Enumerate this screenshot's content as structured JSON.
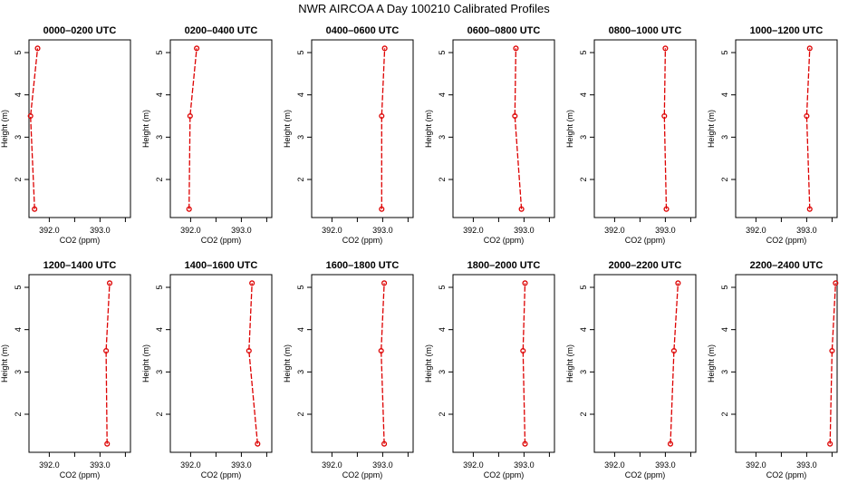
{
  "figure": {
    "title": "NWR AIRCOA A  Day 100210  Calibrated Profiles"
  },
  "style": {
    "line_color": "#dd0000",
    "point_color": "#dd0000",
    "axis_color": "#000000"
  },
  "chart_data": [
    {
      "type": "line",
      "title": "0000–0200 UTC",
      "xlabel": "CO2 (ppm)",
      "ylabel": "Height (m)",
      "xlim": [
        391.6,
        393.6
      ],
      "ylim": [
        1.1,
        5.3
      ],
      "xticks": [
        "392.0",
        "393.0"
      ],
      "yticks": [
        "2",
        "3",
        "4",
        "5"
      ],
      "series": [
        {
          "x": [
            391.71,
            391.63,
            391.77
          ],
          "y": [
            1.3,
            3.5,
            5.1
          ]
        }
      ]
    },
    {
      "type": "line",
      "title": "0200–0400 UTC",
      "xlabel": "CO2 (ppm)",
      "ylabel": "Height (m)",
      "xlim": [
        391.6,
        393.6
      ],
      "ylim": [
        1.1,
        5.3
      ],
      "xticks": [
        "392.0",
        "393.0"
      ],
      "yticks": [
        "2",
        "3",
        "4",
        "5"
      ],
      "series": [
        {
          "x": [
            391.97,
            391.99,
            392.12
          ],
          "y": [
            1.3,
            3.5,
            5.1
          ]
        }
      ]
    },
    {
      "type": "line",
      "title": "0400–0600 UTC",
      "xlabel": "CO2 (ppm)",
      "ylabel": "Height (m)",
      "xlim": [
        391.6,
        393.6
      ],
      "ylim": [
        1.1,
        5.3
      ],
      "xticks": [
        "392.0",
        "393.0"
      ],
      "yticks": [
        "2",
        "3",
        "4",
        "5"
      ],
      "series": [
        {
          "x": [
            392.98,
            392.98,
            393.04
          ],
          "y": [
            1.3,
            3.5,
            5.1
          ]
        }
      ]
    },
    {
      "type": "line",
      "title": "0600–0800 UTC",
      "xlabel": "CO2 (ppm)",
      "ylabel": "Height (m)",
      "xlim": [
        391.6,
        393.6
      ],
      "ylim": [
        1.1,
        5.3
      ],
      "xticks": [
        "392.0",
        "393.0"
      ],
      "yticks": [
        "2",
        "3",
        "4",
        "5"
      ],
      "series": [
        {
          "x": [
            392.95,
            392.82,
            392.84
          ],
          "y": [
            1.3,
            3.5,
            5.1
          ]
        }
      ]
    },
    {
      "type": "line",
      "title": "0800–1000 UTC",
      "xlabel": "CO2 (ppm)",
      "ylabel": "Height (m)",
      "xlim": [
        391.6,
        393.6
      ],
      "ylim": [
        1.1,
        5.3
      ],
      "xticks": [
        "392.0",
        "393.0"
      ],
      "yticks": [
        "2",
        "3",
        "4",
        "5"
      ],
      "series": [
        {
          "x": [
            393.02,
            392.98,
            393.0
          ],
          "y": [
            1.3,
            3.5,
            5.1
          ]
        }
      ]
    },
    {
      "type": "line",
      "title": "1000–1200 UTC",
      "xlabel": "CO2 (ppm)",
      "ylabel": "Height (m)",
      "xlim": [
        391.6,
        393.6
      ],
      "ylim": [
        1.1,
        5.3
      ],
      "xticks": [
        "392.0",
        "393.0"
      ],
      "yticks": [
        "2",
        "3",
        "4",
        "5"
      ],
      "series": [
        {
          "x": [
            393.06,
            393.0,
            393.06
          ],
          "y": [
            1.3,
            3.5,
            5.1
          ]
        }
      ]
    },
    {
      "type": "line",
      "title": "1200–1400 UTC",
      "xlabel": "CO2 (ppm)",
      "ylabel": "Height (m)",
      "xlim": [
        391.6,
        393.6
      ],
      "ylim": [
        1.1,
        5.3
      ],
      "xticks": [
        "392.0",
        "393.0"
      ],
      "yticks": [
        "2",
        "3",
        "4",
        "5"
      ],
      "series": [
        {
          "x": [
            393.14,
            393.12,
            393.19
          ],
          "y": [
            1.3,
            3.5,
            5.1
          ]
        }
      ]
    },
    {
      "type": "line",
      "title": "1400–1600 UTC",
      "xlabel": "CO2 (ppm)",
      "ylabel": "Height (m)",
      "xlim": [
        391.6,
        393.6
      ],
      "ylim": [
        1.1,
        5.3
      ],
      "xticks": [
        "392.0",
        "393.0"
      ],
      "yticks": [
        "2",
        "3",
        "4",
        "5"
      ],
      "series": [
        {
          "x": [
            393.32,
            393.15,
            393.21
          ],
          "y": [
            1.3,
            3.5,
            5.1
          ]
        }
      ]
    },
    {
      "type": "line",
      "title": "1600–1800 UTC",
      "xlabel": "CO2 (ppm)",
      "ylabel": "Height (m)",
      "xlim": [
        391.6,
        393.6
      ],
      "ylim": [
        1.1,
        5.3
      ],
      "xticks": [
        "392.0",
        "393.0"
      ],
      "yticks": [
        "2",
        "3",
        "4",
        "5"
      ],
      "series": [
        {
          "x": [
            393.03,
            392.97,
            393.03
          ],
          "y": [
            1.3,
            3.5,
            5.1
          ]
        }
      ]
    },
    {
      "type": "line",
      "title": "1800–2000 UTC",
      "xlabel": "CO2 (ppm)",
      "ylabel": "Height (m)",
      "xlim": [
        391.6,
        393.6
      ],
      "ylim": [
        1.1,
        5.3
      ],
      "xticks": [
        "392.0",
        "393.0"
      ],
      "yticks": [
        "2",
        "3",
        "4",
        "5"
      ],
      "series": [
        {
          "x": [
            393.02,
            392.98,
            393.02
          ],
          "y": [
            1.3,
            3.5,
            5.1
          ]
        }
      ]
    },
    {
      "type": "line",
      "title": "2000–2200 UTC",
      "xlabel": "CO2 (ppm)",
      "ylabel": "Height (m)",
      "xlim": [
        391.6,
        393.6
      ],
      "ylim": [
        1.1,
        5.3
      ],
      "xticks": [
        "392.0",
        "393.0"
      ],
      "yticks": [
        "2",
        "3",
        "4",
        "5"
      ],
      "series": [
        {
          "x": [
            393.1,
            393.17,
            393.25
          ],
          "y": [
            1.3,
            3.5,
            5.1
          ]
        }
      ]
    },
    {
      "type": "line",
      "title": "2200–2400 UTC",
      "xlabel": "CO2 (ppm)",
      "ylabel": "Height (m)",
      "xlim": [
        391.6,
        393.6
      ],
      "ylim": [
        1.1,
        5.3
      ],
      "xticks": [
        "392.0",
        "393.0"
      ],
      "yticks": [
        "2",
        "3",
        "4",
        "5"
      ],
      "series": [
        {
          "x": [
            393.46,
            393.5,
            393.57
          ],
          "y": [
            1.3,
            3.5,
            5.1
          ]
        }
      ]
    }
  ]
}
